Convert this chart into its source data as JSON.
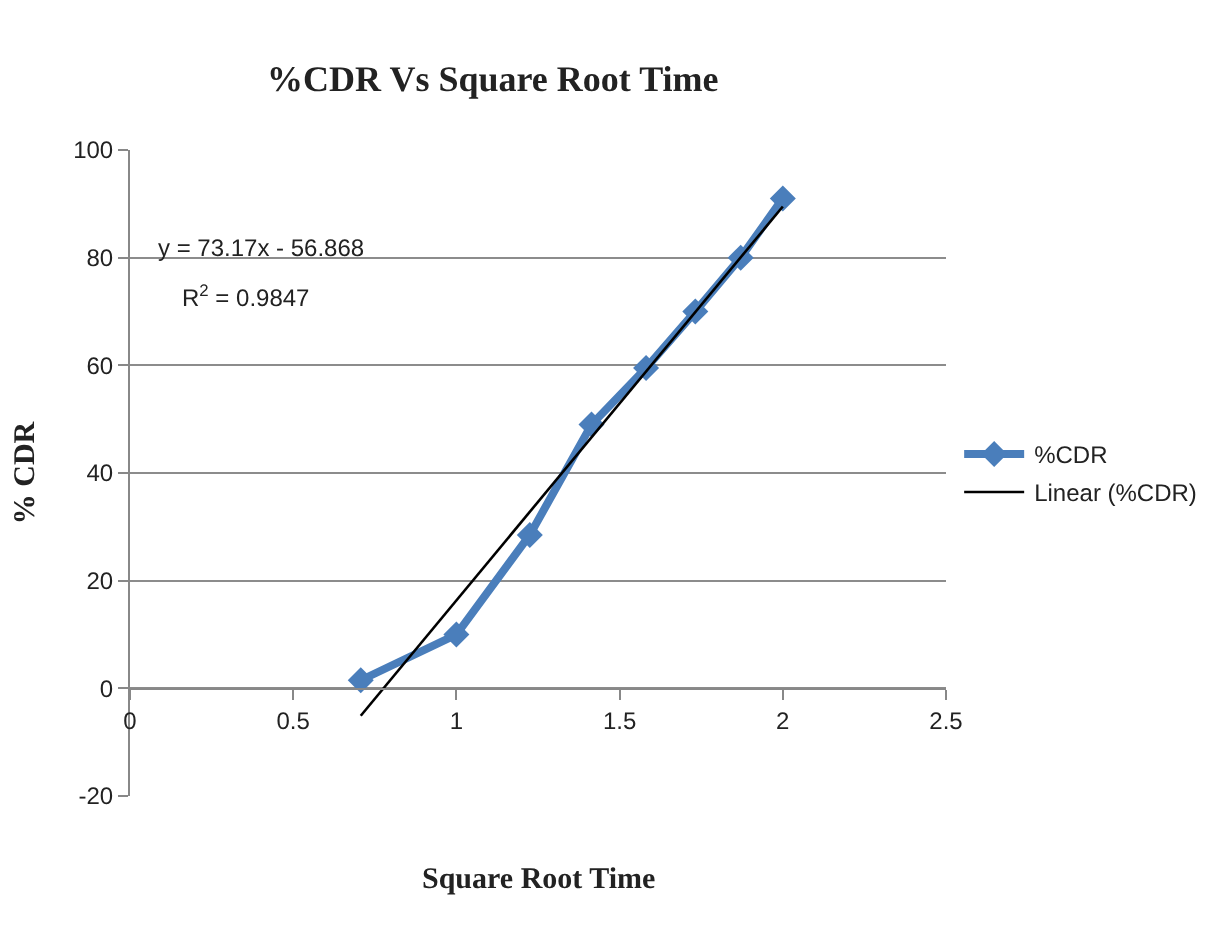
{
  "chart_data": {
    "type": "line",
    "title": "%CDR Vs Square Root Time",
    "xlabel": "Square Root Time",
    "ylabel": "% CDR",
    "series": [
      {
        "name": "%CDR",
        "color": "#4a7ebb",
        "x": [
          0.707,
          1,
          1.225,
          1.414,
          1.581,
          1.732,
          1.871,
          2
        ],
        "values": [
          1.5,
          10,
          28.5,
          49,
          59.5,
          70,
          80,
          91
        ],
        "marker": "diamond"
      },
      {
        "name": "Linear (%CDR)",
        "color": "#000000",
        "x": [
          0.707,
          2
        ],
        "values": [
          -5.1,
          89.5
        ],
        "marker": "none"
      }
    ],
    "xlim": [
      0,
      2.5
    ],
    "xticks": [
      0,
      0.5,
      1,
      1.5,
      2,
      2.5
    ],
    "ylim": [
      -20,
      100
    ],
    "yticks": [
      -20,
      0,
      20,
      40,
      60,
      80,
      100
    ],
    "grid": "y",
    "legend": "right",
    "annotations": [
      "y = 73.17x - 56.868",
      "R$^{2}$ = 0.9847"
    ]
  }
}
